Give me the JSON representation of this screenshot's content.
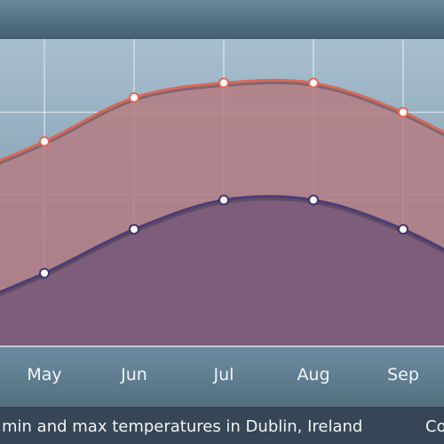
{
  "chart_data": {
    "type": "area",
    "title": "",
    "xlabel": "",
    "ylabel": "",
    "caption": "min and max temperatures in Dublin, Ireland",
    "caption_tail": "Co",
    "categories": [
      "May",
      "Jun",
      "Jul",
      "Aug",
      "Sep"
    ],
    "series": [
      {
        "name": "max",
        "values": [
          15,
          18,
          19,
          19,
          17
        ],
        "color": "#d9695a"
      },
      {
        "name": "min",
        "values": [
          6,
          9,
          11,
          11,
          9
        ],
        "color": "#4a3d78"
      }
    ],
    "ylim": [
      1,
      22
    ],
    "grid": true,
    "colors": {
      "header": "#4d6a80",
      "plot_bg_top": "#a7bccb",
      "plot_bg_bottom": "#6d8fa8",
      "max_fill": "#b57c82",
      "min_fill": "#7a5a78",
      "axis_band": "#5e7c92",
      "caption_band": "#374757",
      "marker_max_edge": "#e56656",
      "marker_min_edge": "#3f3469"
    }
  }
}
